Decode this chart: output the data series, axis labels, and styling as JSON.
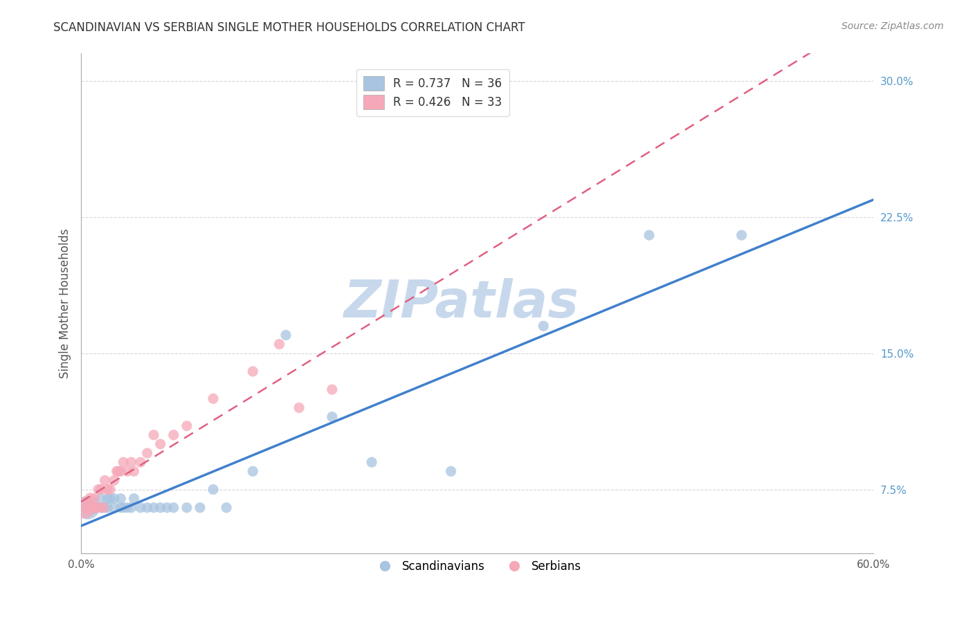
{
  "title": "SCANDINAVIAN VS SERBIAN SINGLE MOTHER HOUSEHOLDS CORRELATION CHART",
  "source": "Source: ZipAtlas.com",
  "ylabel": "Single Mother Households",
  "xlim": [
    0.0,
    0.6
  ],
  "ylim": [
    0.04,
    0.315
  ],
  "xtick_positions": [
    0.0,
    0.1,
    0.2,
    0.3,
    0.4,
    0.5,
    0.6
  ],
  "xticklabels": [
    "0.0%",
    "",
    "",
    "",
    "",
    "",
    "60.0%"
  ],
  "yticks_right": [
    0.075,
    0.15,
    0.225,
    0.3
  ],
  "yticklabels_right": [
    "7.5%",
    "15.0%",
    "22.5%",
    "30.0%"
  ],
  "grid_color": "#cccccc",
  "background_color": "#ffffff",
  "scandinavian_color": "#a8c4e0",
  "serbian_color": "#f5a8b8",
  "scandinavian_line_color": "#4080cc",
  "serbian_line_color": "#e06080",
  "legend_R_scandinavian": "R = 0.737",
  "legend_N_scandinavian": "N = 36",
  "legend_R_serbian": "R = 0.426",
  "legend_N_serbian": "N = 33",
  "watermark_text": "ZIPatlas",
  "watermark_color": "#c8d8ec",
  "scandinavian_x": [
    0.005,
    0.008,
    0.01,
    0.012,
    0.015,
    0.015,
    0.018,
    0.02,
    0.02,
    0.022,
    0.025,
    0.025,
    0.03,
    0.03,
    0.032,
    0.035,
    0.038,
    0.04,
    0.045,
    0.05,
    0.055,
    0.06,
    0.065,
    0.07,
    0.08,
    0.09,
    0.1,
    0.11,
    0.13,
    0.155,
    0.19,
    0.22,
    0.28,
    0.35,
    0.43,
    0.5
  ],
  "scandinavian_y": [
    0.065,
    0.065,
    0.065,
    0.065,
    0.065,
    0.07,
    0.065,
    0.065,
    0.07,
    0.07,
    0.065,
    0.07,
    0.065,
    0.07,
    0.065,
    0.065,
    0.065,
    0.07,
    0.065,
    0.065,
    0.065,
    0.065,
    0.065,
    0.065,
    0.065,
    0.065,
    0.075,
    0.065,
    0.085,
    0.16,
    0.115,
    0.09,
    0.085,
    0.165,
    0.215,
    0.215
  ],
  "scandinavian_dot_sizes": [
    600,
    200,
    150,
    120,
    120,
    120,
    120,
    120,
    120,
    120,
    120,
    120,
    120,
    120,
    120,
    120,
    120,
    120,
    120,
    120,
    120,
    120,
    120,
    120,
    120,
    120,
    120,
    120,
    120,
    120,
    120,
    120,
    120,
    120,
    120,
    120
  ],
  "serbian_x": [
    0.003,
    0.005,
    0.007,
    0.008,
    0.01,
    0.01,
    0.012,
    0.013,
    0.015,
    0.015,
    0.017,
    0.018,
    0.02,
    0.022,
    0.025,
    0.027,
    0.028,
    0.03,
    0.032,
    0.035,
    0.038,
    0.04,
    0.045,
    0.05,
    0.055,
    0.06,
    0.07,
    0.08,
    0.1,
    0.13,
    0.15,
    0.165,
    0.19
  ],
  "serbian_y": [
    0.065,
    0.065,
    0.07,
    0.065,
    0.065,
    0.07,
    0.065,
    0.075,
    0.065,
    0.075,
    0.065,
    0.08,
    0.075,
    0.075,
    0.08,
    0.085,
    0.085,
    0.085,
    0.09,
    0.085,
    0.09,
    0.085,
    0.09,
    0.095,
    0.105,
    0.1,
    0.105,
    0.11,
    0.125,
    0.14,
    0.155,
    0.12,
    0.13
  ],
  "serbian_dot_sizes": [
    500,
    200,
    150,
    120,
    120,
    120,
    120,
    120,
    120,
    120,
    120,
    120,
    120,
    120,
    120,
    120,
    120,
    120,
    120,
    120,
    120,
    120,
    120,
    120,
    120,
    120,
    120,
    120,
    120,
    120,
    120,
    120,
    120
  ]
}
